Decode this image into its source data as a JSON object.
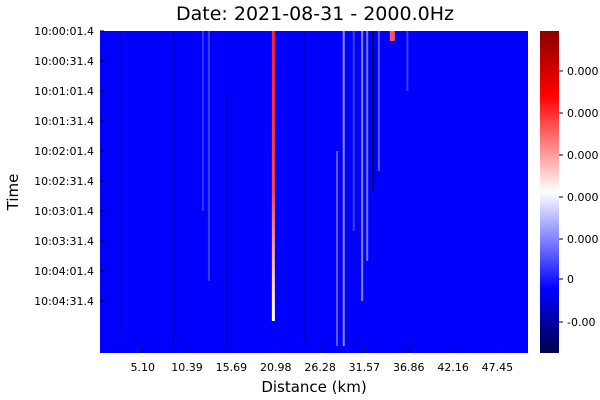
{
  "chart_data": {
    "type": "heatmap",
    "title": "Date: 2021-08-31 - 2000.0Hz",
    "xlabel": "Distance (km)",
    "ylabel": "Time",
    "x_ticks": [
      "5.10",
      "10.39",
      "15.69",
      "20.98",
      "26.28",
      "31.57",
      "36.86",
      "42.16",
      "47.45"
    ],
    "y_ticks": [
      "10:00:01.4",
      "10:00:31.4",
      "10:01:01.4",
      "10:01:31.4",
      "10:02:01.4",
      "10:02:31.4",
      "10:03:01.4",
      "10:03:31.4",
      "10:04:01.4",
      "10:04:31.4"
    ],
    "colorbar_ticks": [
      "-0.00",
      "0",
      "0.000",
      "0.000",
      "0.000",
      "0.000",
      "0.000"
    ],
    "colormap": [
      "#00004c",
      "#0000ff",
      "#ffffff",
      "#ff0000",
      "#8b0000"
    ],
    "background_color": "#0000ff",
    "streaks": [
      {
        "x": 20.7,
        "t0": 0,
        "t1": 290,
        "color": "#ff2222",
        "fade": "#ffffff"
      },
      {
        "x": 34.9,
        "t0": 0,
        "t1": 10,
        "color": "#ff5555"
      },
      {
        "x": 29.1,
        "t0": 0,
        "t1": 315,
        "color": "#ffffff",
        "opacity": 0.55
      },
      {
        "x": 28.3,
        "t0": 120,
        "t1": 315,
        "color": "#c8c8ff",
        "opacity": 0.45
      },
      {
        "x": 31.3,
        "t0": 0,
        "t1": 270,
        "color": "#ffffff",
        "opacity": 0.5
      },
      {
        "x": 31.9,
        "t0": 0,
        "t1": 230,
        "color": "#ffffff",
        "opacity": 0.45
      },
      {
        "x": 32.6,
        "t0": 0,
        "t1": 160,
        "color": "#000033",
        "opacity": 0.7
      },
      {
        "x": 33.3,
        "t0": 0,
        "t1": 140,
        "color": "#ffffff",
        "opacity": 0.35
      },
      {
        "x": 30.3,
        "t0": 0,
        "t1": 200,
        "color": "#b0b0ff",
        "opacity": 0.35
      },
      {
        "x": 13.0,
        "t0": 0,
        "t1": 250,
        "color": "#ccccff",
        "opacity": 0.3
      },
      {
        "x": 12.3,
        "t0": 0,
        "t1": 180,
        "color": "#ccccff",
        "opacity": 0.25
      },
      {
        "x": 8.8,
        "t0": 0,
        "t1": 315,
        "color": "#000040",
        "opacity": 0.35
      },
      {
        "x": 15.1,
        "t0": 60,
        "t1": 315,
        "color": "#000040",
        "opacity": 0.3
      },
      {
        "x": 24.4,
        "t0": 0,
        "t1": 315,
        "color": "#000040",
        "opacity": 0.25
      },
      {
        "x": 36.7,
        "t0": 0,
        "t1": 60,
        "color": "#ccccff",
        "opacity": 0.3
      },
      {
        "x": 2.4,
        "t0": 0,
        "t1": 315,
        "color": "#000040",
        "opacity": 0.2
      }
    ]
  }
}
